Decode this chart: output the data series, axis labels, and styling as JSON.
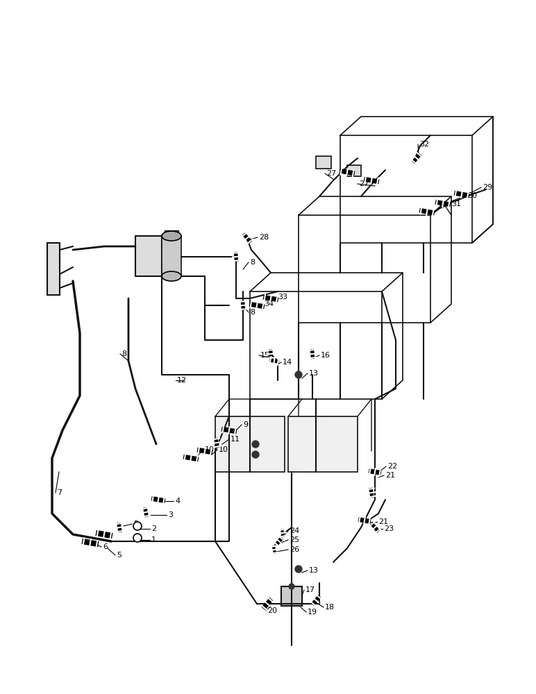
{
  "bg_color": "#ffffff",
  "lc": "#111111",
  "figsize": [
    7.72,
    10.0
  ],
  "dpi": 100,
  "xlim": [
    0,
    772
  ],
  "ylim": [
    0,
    1000
  ]
}
